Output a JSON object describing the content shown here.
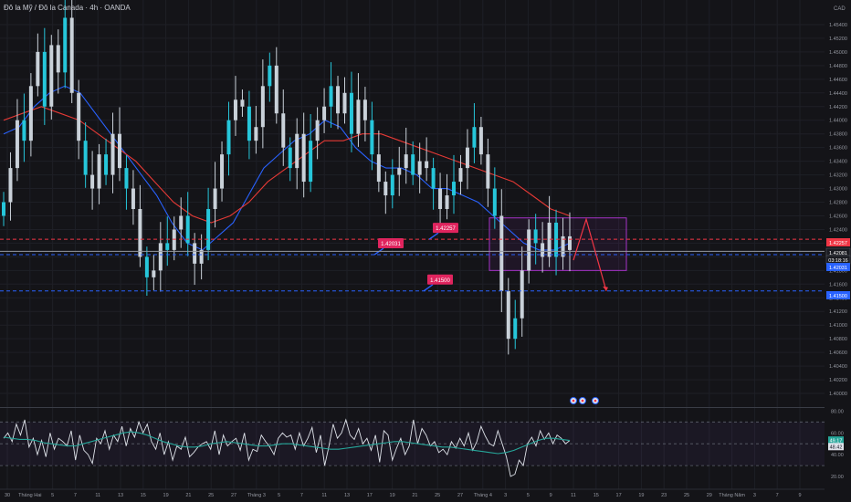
{
  "window": {
    "title": "Đô la Mỹ / Đô la Canada · 4h · OANDA"
  },
  "colors": {
    "background": "#141418",
    "grid": "#1e1f26",
    "text": "#9598a1",
    "candle_body": "#c9d1d9",
    "candle_teal": "#26c6da",
    "ema_fast": "#2962ff",
    "ema_slow": "#e53935",
    "level_red": "#f23645",
    "level_blue": "#2962ff",
    "zone": "#a633c9",
    "rsi_line": "#dfe3ea",
    "rsi_ma": "#26a69a"
  },
  "chart_data": [
    {
      "type": "line",
      "subtype": "candlestick",
      "title": "Đô la Mỹ / Đô la Canada · 4h · OANDA",
      "currency_label": "CAD",
      "ylim": [
        1.398,
        1.456
      ],
      "ytick_values": [
        1.4,
        1.402,
        1.404,
        1.406,
        1.408,
        1.41,
        1.412,
        1.414,
        1.416,
        1.418,
        1.42,
        1.422,
        1.424,
        1.426,
        1.428,
        1.43,
        1.432,
        1.434,
        1.436,
        1.438,
        1.44,
        1.442,
        1.444,
        1.446,
        1.448,
        1.45,
        1.452,
        1.454
      ],
      "ytick_labels": [
        "1.40000",
        "1.40200",
        "1.40400",
        "1.40600",
        "1.40800",
        "1.41000",
        "1.41200",
        "1.41400",
        "1.41600",
        "1.41800",
        "1.42000",
        "1.42200",
        "1.42400",
        "1.42600",
        "1.42800",
        "1.43000",
        "1.43200",
        "1.43400",
        "1.43600",
        "1.43800",
        "1.44000",
        "1.44200",
        "1.44400",
        "1.44600",
        "1.44800",
        "1.45000",
        "1.45200",
        "1.45400"
      ],
      "xtick_labels": [
        "30",
        "Tháng Hai",
        "5",
        "7",
        "11",
        "13",
        "15",
        "19",
        "21",
        "25",
        "27",
        "Tháng 3",
        "5",
        "7",
        "11",
        "13",
        "17",
        "19",
        "21",
        "25",
        "27",
        "Tháng 4",
        "3",
        "5",
        "9",
        "11",
        "15",
        "17",
        "19",
        "23",
        "25",
        "29",
        "Tháng Năm",
        "3",
        "7",
        "9"
      ],
      "close": [
        1.428,
        1.433,
        1.44,
        1.437,
        1.445,
        1.45,
        1.442,
        1.451,
        1.447,
        1.455,
        1.444,
        1.437,
        1.432,
        1.43,
        1.435,
        1.432,
        1.438,
        1.433,
        1.43,
        1.427,
        1.42,
        1.417,
        1.418,
        1.422,
        1.421,
        1.424,
        1.426,
        1.422,
        1.419,
        1.421,
        1.427,
        1.43,
        1.435,
        1.44,
        1.443,
        1.442,
        1.437,
        1.439,
        1.445,
        1.448,
        1.441,
        1.436,
        1.433,
        1.438,
        1.431,
        1.437,
        1.44,
        1.442,
        1.445,
        1.441,
        1.444,
        1.438,
        1.443,
        1.44,
        1.435,
        1.431,
        1.429,
        1.432,
        1.433,
        1.435,
        1.432,
        1.434,
        1.433,
        1.43,
        1.427,
        1.429,
        1.431,
        1.433,
        1.436,
        1.439,
        1.435,
        1.43,
        1.426,
        1.415,
        1.408,
        1.411,
        1.418,
        1.424,
        1.422,
        1.42,
        1.425,
        1.42,
        1.423,
        1.421
      ],
      "series": [
        {
          "name": "",
          "kind": "ema_fast",
          "values": [
            1.438,
            1.439,
            1.442,
            1.444,
            1.445,
            1.444,
            1.441,
            1.438,
            1.435,
            1.432,
            1.429,
            1.425,
            1.422,
            1.421,
            1.423,
            1.425,
            1.429,
            1.433,
            1.435,
            1.437,
            1.438,
            1.44,
            1.439,
            1.436,
            1.434,
            1.433,
            1.433,
            1.432,
            1.43,
            1.43,
            1.429,
            1.428,
            1.426,
            1.424,
            1.422,
            1.421,
            1.421,
            1.422
          ]
        },
        {
          "name": "",
          "kind": "ema_slow",
          "values": [
            1.44,
            1.441,
            1.442,
            1.441,
            1.44,
            1.438,
            1.436,
            1.434,
            1.431,
            1.428,
            1.426,
            1.425,
            1.426,
            1.428,
            1.431,
            1.433,
            1.435,
            1.437,
            1.437,
            1.438,
            1.438,
            1.437,
            1.436,
            1.435,
            1.434,
            1.433,
            1.432,
            1.431,
            1.429,
            1.427,
            1.426
          ]
        }
      ],
      "horizontal_levels": [
        {
          "value": 1.42257,
          "label": "1.42257",
          "color": "#f23645",
          "style": "dashed"
        },
        {
          "value": 1.42031,
          "label": "1.42031",
          "color": "#2962ff",
          "style": "dashed"
        },
        {
          "value": 1.415,
          "label": "1.41500",
          "color": "#2962ff",
          "style": "dashed"
        },
        {
          "value": 1.42081,
          "label": "",
          "color": "#9598a1",
          "style": "solid"
        }
      ],
      "price_tags": [
        {
          "text": "1.42257",
          "color": "#f23645"
        },
        {
          "text": "1.42081",
          "color": "#ffffff"
        },
        {
          "text": "03:18:16",
          "color": "#ffffff"
        },
        {
          "text": "1.42031",
          "color": "#2962ff"
        },
        {
          "text": "1.41500",
          "color": "#2962ff"
        }
      ],
      "zone": {
        "ymin": 1.418,
        "ymax": 1.4257,
        "label": ""
      },
      "projection": [
        1.4195,
        1.4255,
        1.415
      ],
      "event_markers": 3,
      "grid": true
    },
    {
      "type": "line",
      "name": "RSI",
      "ylim": [
        15,
        82
      ],
      "ytick_labels": [
        "80.00",
        "60.00",
        "40.00",
        "20.00"
      ],
      "ytick_values": [
        80,
        60,
        40,
        20
      ],
      "guide_levels": [
        70,
        50,
        30
      ],
      "current_values": [
        "49.17",
        "48.42"
      ],
      "series": [
        {
          "name": "",
          "kind": "rsi",
          "values": [
            55,
            60,
            52,
            68,
            58,
            72,
            47,
            55,
            40,
            53,
            38,
            60,
            45,
            55,
            52,
            48,
            62,
            35,
            58,
            44,
            40,
            32,
            55,
            50,
            62,
            45,
            58,
            52,
            66,
            48,
            64,
            56,
            70,
            60,
            68,
            52,
            45,
            60,
            40,
            52,
            35,
            48,
            45,
            56,
            38,
            42,
            47,
            50,
            52,
            45,
            62,
            40,
            58,
            48,
            52,
            55,
            44,
            60,
            35,
            45,
            43,
            58,
            52,
            47,
            40,
            55,
            60,
            56,
            58,
            45,
            60,
            48,
            55,
            65,
            42,
            58,
            30,
            48,
            68,
            55,
            60,
            72,
            58,
            54,
            64,
            50,
            55,
            44,
            58,
            33,
            62,
            58,
            35,
            46,
            55,
            40,
            48,
            72,
            50,
            64,
            58,
            48,
            52,
            42,
            45,
            40,
            52,
            46,
            55,
            48,
            60,
            44,
            52,
            66,
            57,
            50,
            48,
            62,
            50,
            38,
            20,
            22,
            35,
            30,
            50,
            56,
            48,
            62,
            54,
            60,
            50,
            58,
            55,
            50,
            53
          ]
        },
        {
          "name": "",
          "kind": "rsi_ma",
          "values": [
            56,
            55,
            54,
            54,
            53,
            51,
            50,
            49,
            48,
            48,
            50,
            52,
            54,
            56,
            58,
            60,
            61,
            60,
            58,
            55,
            52,
            50,
            48,
            47,
            47,
            48,
            50,
            51,
            52,
            51,
            50,
            49,
            48,
            48,
            49,
            50,
            50,
            49,
            48,
            47,
            46,
            45,
            45,
            46,
            47,
            48,
            49,
            50,
            51,
            52,
            52,
            51,
            50,
            49,
            48,
            47,
            47,
            46,
            45,
            44,
            43,
            42,
            41,
            42,
            44,
            47,
            50,
            53,
            55,
            55,
            54,
            53
          ]
        }
      ]
    }
  ]
}
